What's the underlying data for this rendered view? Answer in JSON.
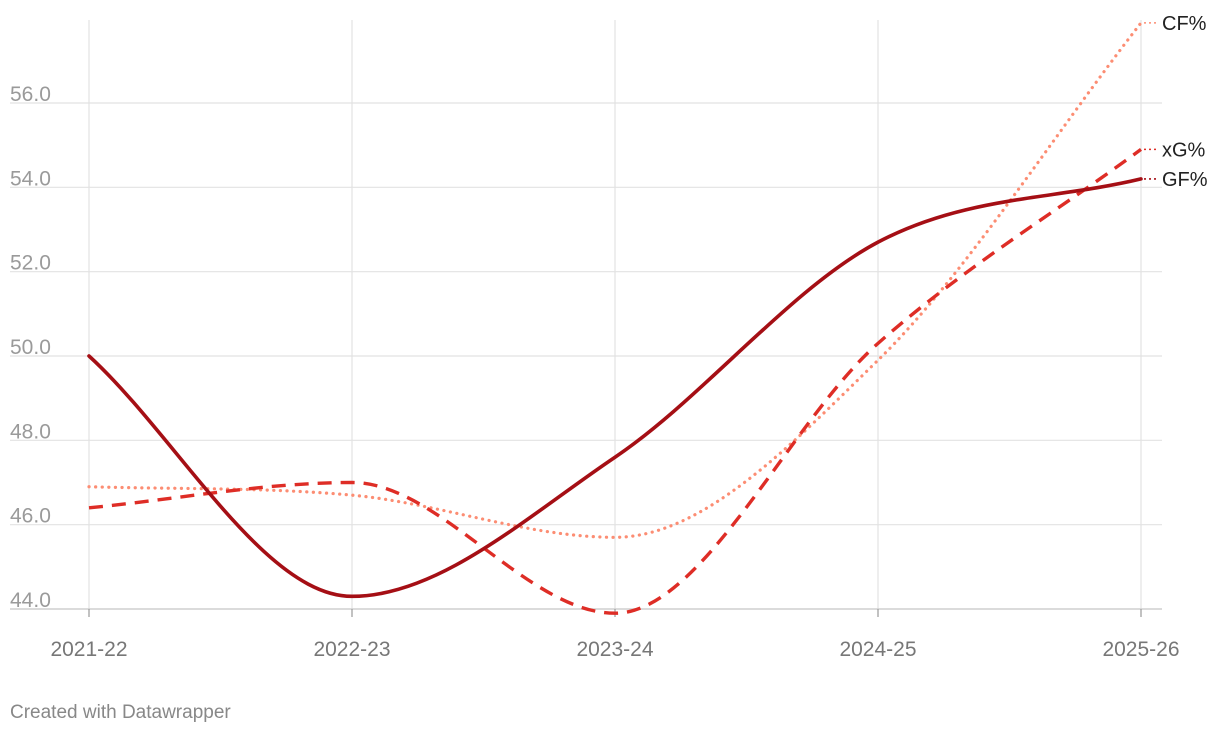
{
  "chart_data": {
    "type": "line",
    "x": [
      "2021-22",
      "2022-23",
      "2023-24",
      "2024-25",
      "2025-26"
    ],
    "ylim": [
      43.7,
      57.9
    ],
    "yticks": [
      "44.0",
      "46.0",
      "48.0",
      "50.0",
      "52.0",
      "54.0",
      "56.0"
    ],
    "grid": true,
    "series": [
      {
        "name": "GF%",
        "values": [
          50.0,
          44.3,
          47.6,
          52.7,
          54.2
        ],
        "color": "#a50f15",
        "dash": "solid"
      },
      {
        "name": "xG%",
        "values": [
          46.4,
          47.0,
          43.9,
          50.3,
          54.9
        ],
        "color": "#de2d26",
        "dash": "dashed"
      },
      {
        "name": "CF%",
        "values": [
          46.9,
          46.7,
          45.7,
          49.9,
          57.9
        ],
        "color": "#fc8d73",
        "dash": "dotted"
      }
    ]
  },
  "footer": {
    "credit": "Created with Datawrapper"
  }
}
